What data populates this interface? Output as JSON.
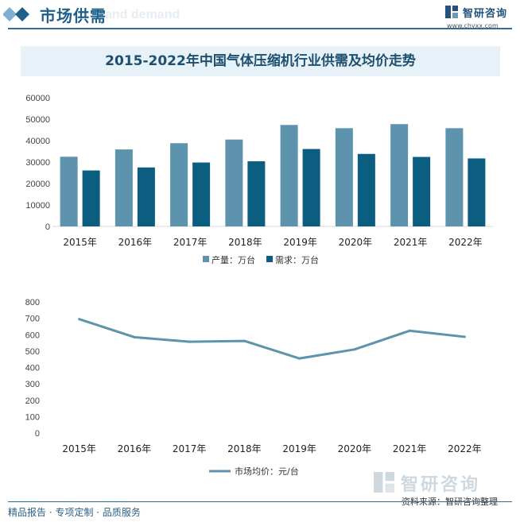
{
  "header": {
    "title": "市场供需",
    "ghost_text": "and demand",
    "brand_name": "智研咨询",
    "brand_url": "www.chyxx.com"
  },
  "chart_title": "2015-2022年中国气体压缩机行业供需及均价走势",
  "colors": {
    "production": "#5e93ad",
    "demand": "#0b5e80",
    "price_line": "#5e93ad",
    "brand": "#1f5f8b"
  },
  "chart_data": [
    {
      "type": "bar",
      "categories": [
        "2015年",
        "2016年",
        "2017年",
        "2018年",
        "2019年",
        "2020年",
        "2021年",
        "2022年"
      ],
      "series": [
        {
          "name": "产量：万台",
          "values": [
            32500,
            35900,
            38800,
            40500,
            47300,
            45800,
            47700,
            45800
          ]
        },
        {
          "name": "需求：万台",
          "values": [
            26100,
            27500,
            29800,
            30400,
            36100,
            33800,
            32400,
            31700
          ]
        }
      ],
      "yticks": [
        "0",
        "10000",
        "20000",
        "30000",
        "40000",
        "50000",
        "60000"
      ],
      "ylim": [
        0,
        60000
      ],
      "legend": "bottom-center"
    },
    {
      "type": "line",
      "categories": [
        "2015年",
        "2016年",
        "2017年",
        "2018年",
        "2019年",
        "2020年",
        "2021年",
        "2022年"
      ],
      "series": [
        {
          "name": "市场均价：元/台",
          "values": [
            695,
            585,
            557,
            562,
            455,
            510,
            624,
            587
          ]
        }
      ],
      "yticks": [
        "0",
        "100",
        "200",
        "300",
        "400",
        "500",
        "600",
        "700",
        "800"
      ],
      "ylim": [
        0,
        800
      ],
      "legend": "bottom-center"
    }
  ],
  "footer": {
    "left": "精品报告 · 专项定制 · 品质服务",
    "source": "资料来源：智研咨询整理",
    "watermark_brand": "智研咨询"
  }
}
